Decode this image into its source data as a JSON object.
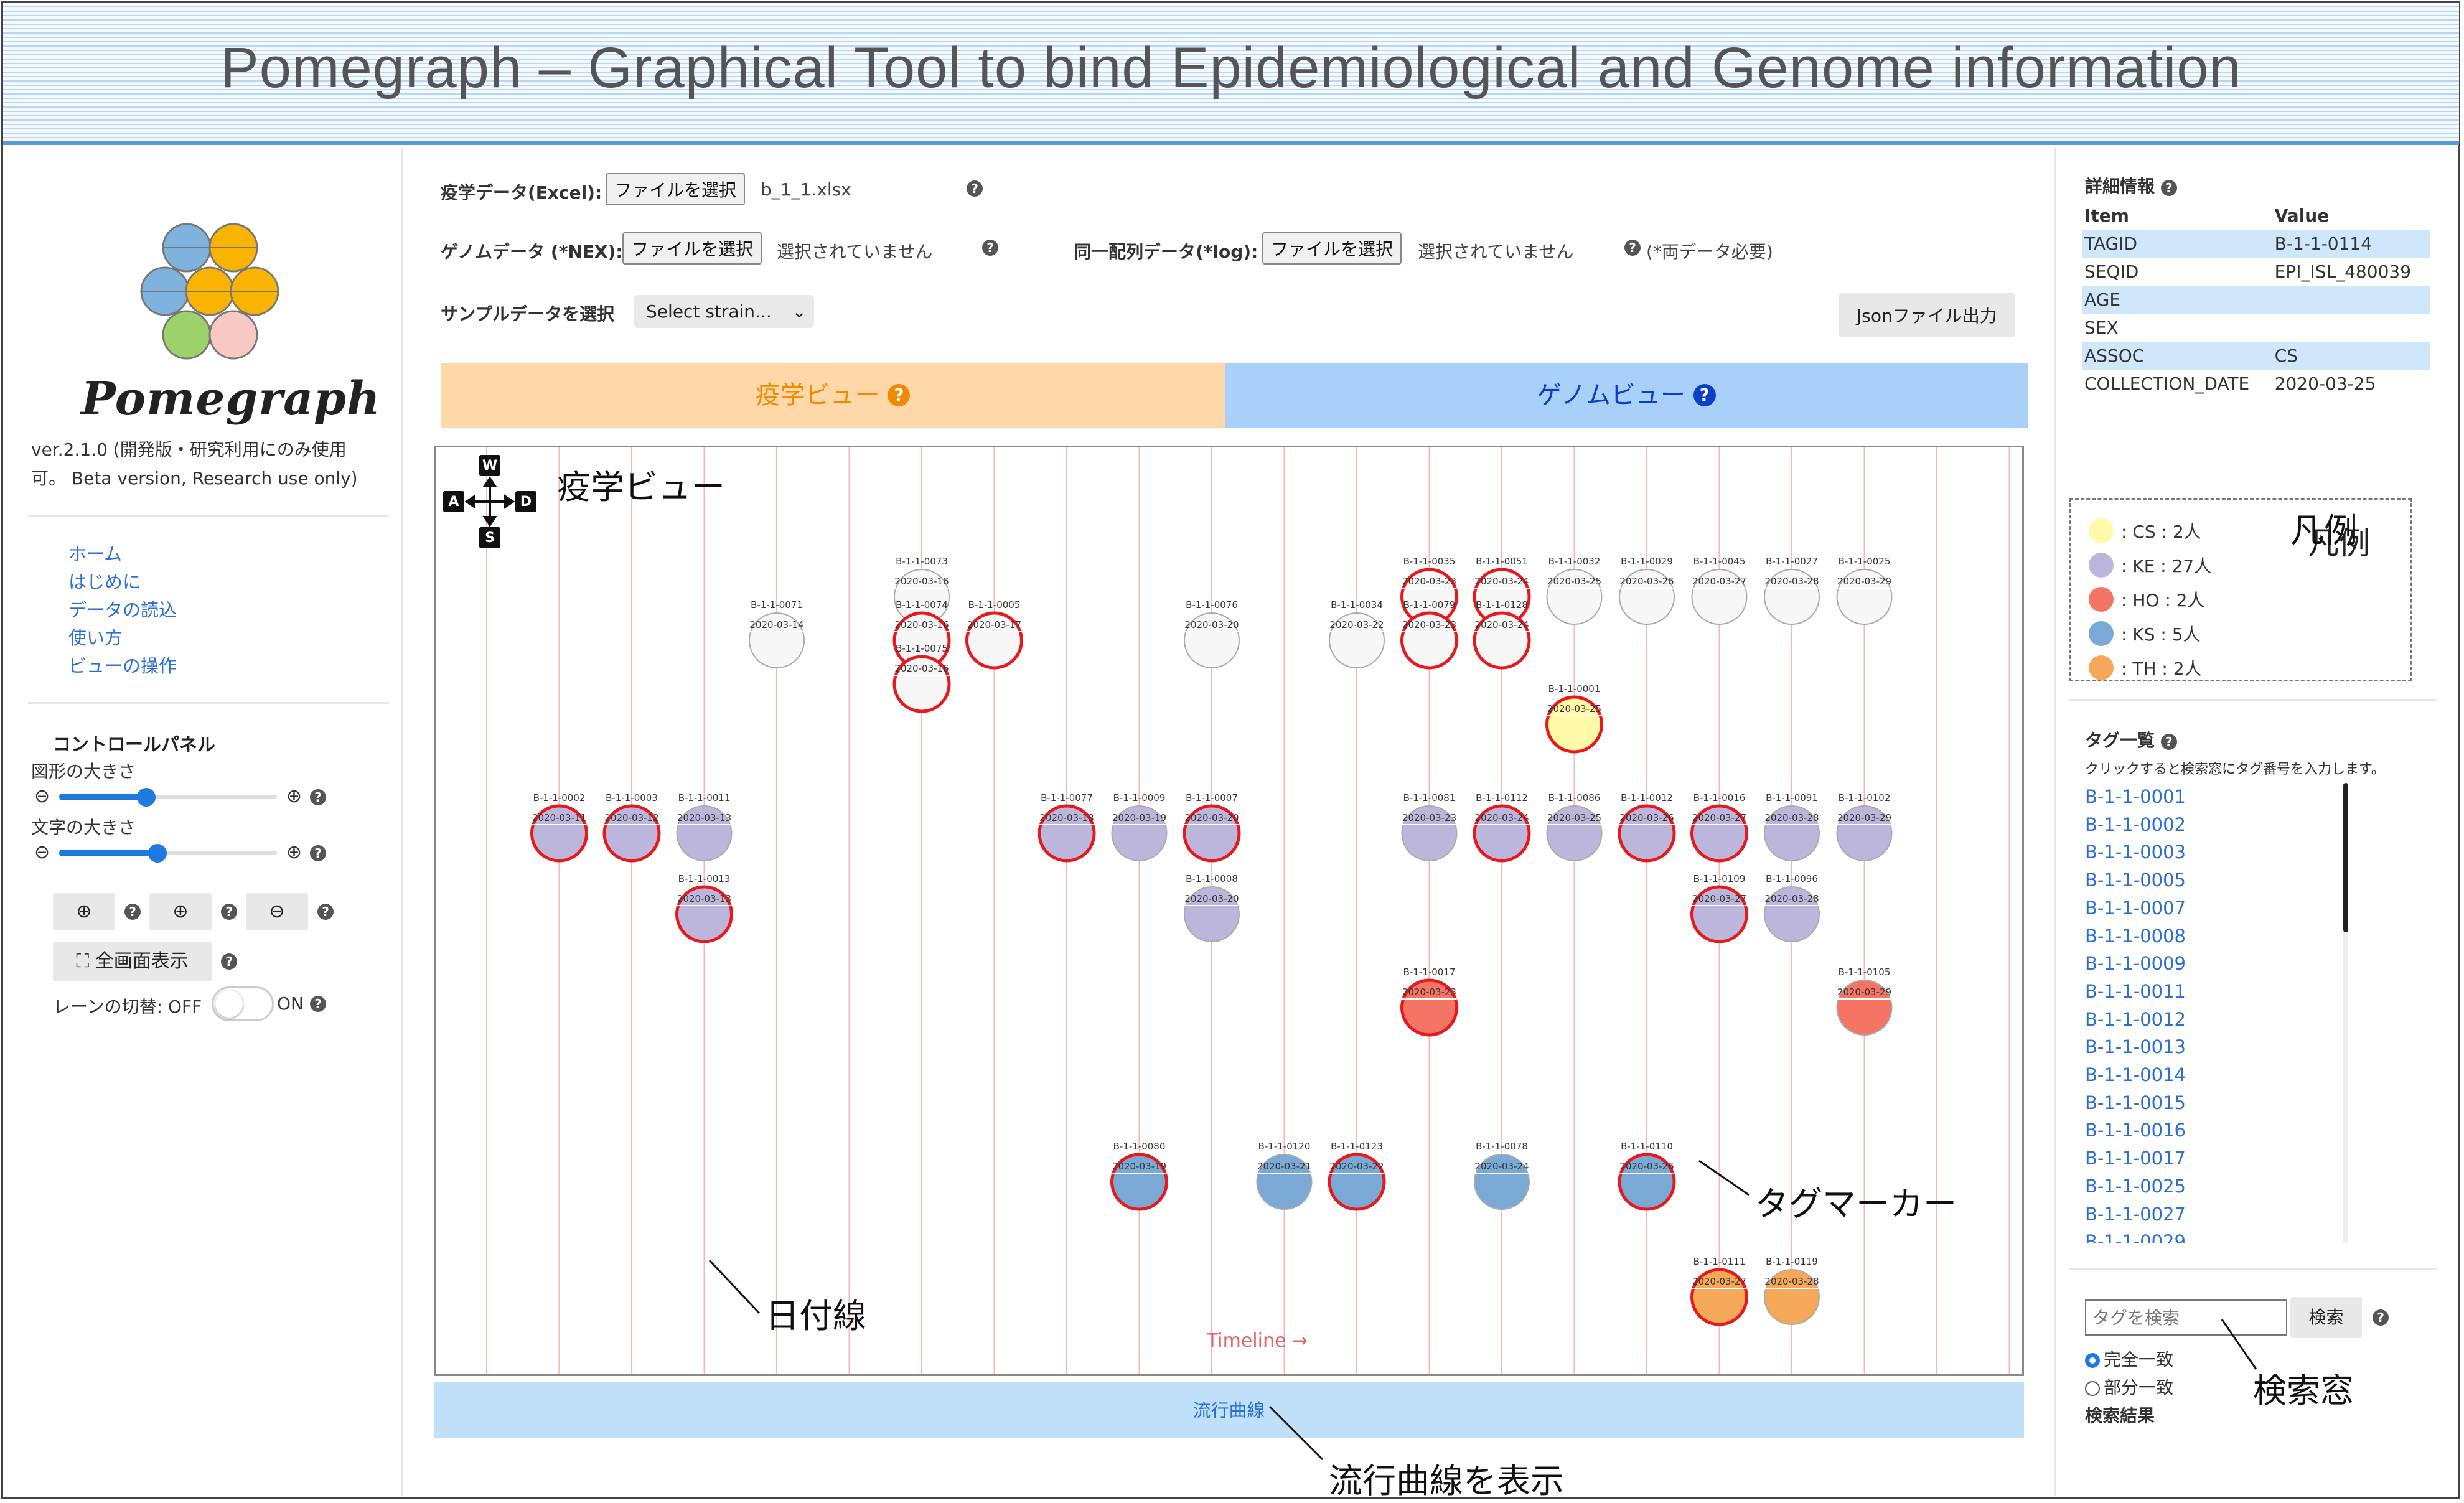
{
  "banner": {
    "title": "Pomegraph – Graphical Tool to bind Epidemiological and Genome information"
  },
  "sidebar": {
    "logo_text": "Pomegraph",
    "version": "ver.2.1.0 (開発版・研究利用にのみ使用可。 Beta version, Research use only)",
    "nav": [
      "ホーム",
      "はじめに",
      "データの読込",
      "使い方",
      "ビューの操作"
    ],
    "control_panel_title": "コントロールパネル",
    "shape_size_label": "図形の大きさ",
    "text_size_label": "文字の大きさ",
    "shape_size_level": 0.4,
    "text_size_level": 0.45,
    "fullscreen_label": "全画面表示",
    "lane_label": "レーンの切替: OFF",
    "lane_on_label": "ON",
    "logo_colors": [
      "#7fb2dd",
      "#f8b400",
      "#f8b400",
      "#7fb2dd",
      "#f8b400",
      "#f8b400",
      "#9bd26a",
      "#f8c8c4"
    ]
  },
  "upload": {
    "epi_label": "疫学データ(Excel):",
    "epi_button": "ファイルを選択",
    "epi_file": "b_1_1.xlsx",
    "genome_label": "ゲノムデータ (*NEX):",
    "genome_button": "ファイルを選択",
    "genome_status": "選択されていません",
    "seq_label": "同一配列データ(*log):",
    "seq_button": "ファイルを選択",
    "seq_status": "選択されていません",
    "seq_note": "(*両データ必要)",
    "sample_label": "サンプルデータを選択",
    "sample_select": "Select strain...",
    "json_button": "Jsonファイル出力"
  },
  "tabs": {
    "epi": "疫学ビュー",
    "genome": "ゲノムビュー"
  },
  "viewport": {
    "compass": {
      "n": "W",
      "w": "A",
      "e": "D",
      "s": "S"
    },
    "timeline_label": "Timeline →",
    "date_line_count": 22,
    "colors": {
      "CS": "#fff9a8",
      "KE": "#bdb6dc",
      "HO": "#f47466",
      "KS": "#7aa9d6",
      "TH": "#f6a85a",
      "unknown": "#f7f7f7",
      "highlight": "#e8191c"
    },
    "markers": [
      {
        "id": "B-1-1-0073",
        "date": "2020-03-16",
        "fill": "unknown",
        "red": false,
        "lane": 0
      },
      {
        "id": "B-1-1-0074",
        "date": "2020-03-16",
        "fill": "unknown",
        "red": true,
        "lane": 1
      },
      {
        "id": "B-1-1-0075",
        "date": "2020-03-16",
        "fill": "unknown",
        "red": true,
        "lane": 2
      },
      {
        "id": "B-1-1-0005",
        "date": "2020-03-17",
        "fill": "unknown",
        "red": true,
        "lane": 1
      },
      {
        "id": "B-1-1-0071",
        "date": "2020-03-14",
        "fill": "unknown",
        "red": false,
        "lane": 1
      },
      {
        "id": "B-1-1-0076",
        "date": "2020-03-20",
        "fill": "unknown",
        "red": false,
        "lane": 1
      },
      {
        "id": "B-1-1-0034",
        "date": "2020-03-22",
        "fill": "unknown",
        "red": false,
        "lane": 1
      },
      {
        "id": "B-1-1-0035",
        "date": "2020-03-23",
        "fill": "unknown",
        "red": true,
        "lane": 0
      },
      {
        "id": "B-1-1-0079",
        "date": "2020-03-23",
        "fill": "unknown",
        "red": true,
        "lane": 1
      },
      {
        "id": "B-1-1-0051",
        "date": "2020-03-24",
        "fill": "unknown",
        "red": true,
        "lane": 0
      },
      {
        "id": "B-1-1-0128",
        "date": "2020-03-24",
        "fill": "unknown",
        "red": true,
        "lane": 1
      },
      {
        "id": "B-1-1-0032",
        "date": "2020-03-25",
        "fill": "unknown",
        "red": false,
        "lane": 0
      },
      {
        "id": "B-1-1-0029",
        "date": "2020-03-26",
        "fill": "unknown",
        "red": false,
        "lane": 0
      },
      {
        "id": "B-1-1-0045",
        "date": "2020-03-27",
        "fill": "unknown",
        "red": false,
        "lane": 0
      },
      {
        "id": "B-1-1-0027",
        "date": "2020-03-28",
        "fill": "unknown",
        "red": false,
        "lane": 0
      },
      {
        "id": "B-1-1-0025",
        "date": "2020-03-29",
        "fill": "unknown",
        "red": false,
        "lane": 0
      },
      {
        "id": "B-1-1-0001",
        "date": "2020-03-25",
        "fill": "CS",
        "red": true,
        "lane": 0
      },
      {
        "id": "B-1-1-0002",
        "date": "2020-03-11",
        "fill": "KE",
        "red": true,
        "lane": 0
      },
      {
        "id": "B-1-1-0003",
        "date": "2020-03-12",
        "fill": "KE",
        "red": true,
        "lane": 0
      },
      {
        "id": "B-1-1-0011",
        "date": "2020-03-13",
        "fill": "KE",
        "red": false,
        "lane": 0
      },
      {
        "id": "B-1-1-0013",
        "date": "2020-03-13",
        "fill": "KE",
        "red": true,
        "lane": 1
      },
      {
        "id": "B-1-1-0077",
        "date": "2020-03-18",
        "fill": "KE",
        "red": true,
        "lane": 0
      },
      {
        "id": "B-1-1-0009",
        "date": "2020-03-19",
        "fill": "KE",
        "red": false,
        "lane": 0
      },
      {
        "id": "B-1-1-0007",
        "date": "2020-03-20",
        "fill": "KE",
        "red": true,
        "lane": 0
      },
      {
        "id": "B-1-1-0008",
        "date": "2020-03-20",
        "fill": "KE",
        "red": false,
        "lane": 1
      },
      {
        "id": "B-1-1-0081",
        "date": "2020-03-23",
        "fill": "KE",
        "red": false,
        "lane": 0
      },
      {
        "id": "B-1-1-0112",
        "date": "2020-03-24",
        "fill": "KE",
        "red": true,
        "lane": 0
      },
      {
        "id": "B-1-1-0086",
        "date": "2020-03-25",
        "fill": "KE",
        "red": false,
        "lane": 0
      },
      {
        "id": "B-1-1-0012",
        "date": "2020-03-26",
        "fill": "KE",
        "red": true,
        "lane": 0
      },
      {
        "id": "B-1-1-0016",
        "date": "2020-03-27",
        "fill": "KE",
        "red": true,
        "lane": 0
      },
      {
        "id": "B-1-1-0091",
        "date": "2020-03-28",
        "fill": "KE",
        "red": false,
        "lane": 0
      },
      {
        "id": "B-1-1-0102",
        "date": "2020-03-29",
        "fill": "KE",
        "red": false,
        "lane": 0
      },
      {
        "id": "B-1-1-0109",
        "date": "2020-03-27",
        "fill": "KE",
        "red": true,
        "lane": 1
      },
      {
        "id": "B-1-1-0096",
        "date": "2020-03-28",
        "fill": "KE",
        "red": false,
        "lane": 1
      },
      {
        "id": "B-1-1-0017",
        "date": "2020-03-23",
        "fill": "HO",
        "red": true,
        "lane": 0
      },
      {
        "id": "B-1-1-0105",
        "date": "2020-03-29",
        "fill": "HO",
        "red": false,
        "lane": 0
      },
      {
        "id": "B-1-1-0080",
        "date": "2020-03-19",
        "fill": "KS",
        "red": true,
        "lane": 0
      },
      {
        "id": "B-1-1-0120",
        "date": "2020-03-21",
        "fill": "KS",
        "red": false,
        "lane": 0
      },
      {
        "id": "B-1-1-0123",
        "date": "2020-03-22",
        "fill": "KS",
        "red": true,
        "lane": 0
      },
      {
        "id": "B-1-1-0078",
        "date": "2020-03-24",
        "fill": "KS",
        "red": false,
        "lane": 0
      },
      {
        "id": "B-1-1-0110",
        "date": "2020-03-26",
        "fill": "KS",
        "red": true,
        "lane": 0
      },
      {
        "id": "B-1-1-0111",
        "date": "2020-03-27",
        "fill": "TH",
        "red": true,
        "lane": 0
      },
      {
        "id": "B-1-1-0119",
        "date": "2020-03-28",
        "fill": "TH",
        "red": false,
        "lane": 0
      }
    ]
  },
  "bottom_bar": {
    "label": "流行曲線"
  },
  "details": {
    "title": "詳細情報",
    "head_item": "Item",
    "head_value": "Value",
    "rows": [
      {
        "item": "TAGID",
        "value": "B-1-1-0114"
      },
      {
        "item": "SEQID",
        "value": "EPI_ISL_480039"
      },
      {
        "item": "AGE",
        "value": ""
      },
      {
        "item": "SEX",
        "value": ""
      },
      {
        "item": "ASSOC",
        "value": "CS"
      },
      {
        "item": "COLLECTION_DATE",
        "value": "2020-03-25"
      }
    ]
  },
  "legend": {
    "title": "凡例",
    "items": [
      {
        "label": ": CS : 2人",
        "color": "#fff9a8"
      },
      {
        "label": ": KE : 27人",
        "color": "#bdb6dc"
      },
      {
        "label": ": HO : 2人",
        "color": "#f47466"
      },
      {
        "label": ": KS : 5人",
        "color": "#7aa9d6"
      },
      {
        "label": ": TH : 2人",
        "color": "#f6a85a"
      }
    ]
  },
  "tags": {
    "title": "タグ一覧",
    "hint": "クリックすると検索窓にタグ番号を入力します。",
    "items": [
      "B-1-1-0001",
      "B-1-1-0002",
      "B-1-1-0003",
      "B-1-1-0005",
      "B-1-1-0007",
      "B-1-1-0008",
      "B-1-1-0009",
      "B-1-1-0011",
      "B-1-1-0012",
      "B-1-1-0013",
      "B-1-1-0014",
      "B-1-1-0015",
      "B-1-1-0016",
      "B-1-1-0017",
      "B-1-1-0025",
      "B-1-1-0027",
      "B-1-1-0029"
    ]
  },
  "search": {
    "placeholder": "タグを検索",
    "button": "検索",
    "exact": "完全一致",
    "partial": "部分一致",
    "results_label": "検索結果"
  },
  "annotations": {
    "epi_view": "疫学ビュー",
    "legend": "凡例",
    "tag_marker": "タグマーカー",
    "date_line": "日付線",
    "search_box": "検索窓",
    "curve": "流行曲線を表示"
  }
}
